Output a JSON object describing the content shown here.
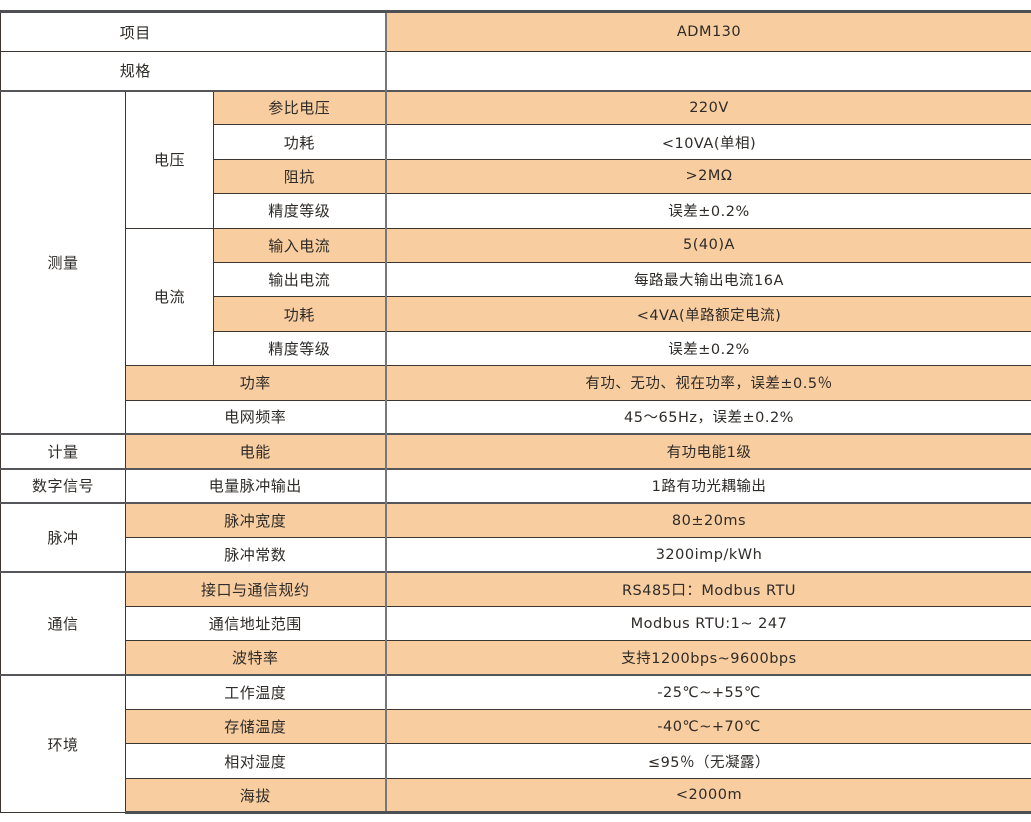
{
  "colors": {
    "accent_row": "#f8cda0",
    "border_dark": "#3b3631",
    "border_section": "#55565a"
  },
  "table": {
    "top_rows": [
      {
        "label": "项目",
        "value": "ADM130"
      },
      {
        "label": "规格",
        "value": ""
      }
    ],
    "sections": [
      {
        "name": "测量",
        "groups": [
          {
            "name": "电压",
            "items": [
              {
                "label": "参比电压",
                "value": "220V"
              },
              {
                "label": "功耗",
                "value": "<10VA(单相)"
              },
              {
                "label": "阻抗",
                "value": ">2MΩ"
              },
              {
                "label": "精度等级",
                "value": "误差±0.2%"
              }
            ]
          },
          {
            "name": "电流",
            "items": [
              {
                "label": "输入电流",
                "value": "5(40)A"
              },
              {
                "label": "输出电流",
                "value": "每路最大输出电流16A"
              },
              {
                "label": "功耗",
                "value": "<4VA(单路额定电流)"
              },
              {
                "label": "精度等级",
                "value": "误差±0.2%"
              }
            ]
          }
        ],
        "items": [
          {
            "label": "功率",
            "value": "有功、无功、视在功率，误差±0.5％"
          },
          {
            "label": "电网频率",
            "value": "45～65Hz，误差±0.2%"
          }
        ]
      },
      {
        "name": "计量",
        "items": [
          {
            "label": "电能",
            "value": "有功电能1级"
          }
        ]
      },
      {
        "name": "数字信号",
        "items": [
          {
            "label": "电量脉冲输出",
            "value": "1路有功光耦输出"
          }
        ]
      },
      {
        "name": "脉冲",
        "items": [
          {
            "label": "脉冲宽度",
            "value": "80±20ms"
          },
          {
            "label": "脉冲常数",
            "value": "3200imp/kWh"
          }
        ]
      },
      {
        "name": "通信",
        "items": [
          {
            "label": "接口与通信规约",
            "value": "RS485口：Modbus RTU"
          },
          {
            "label": "通信地址范围",
            "value": "Modbus RTU:1~ 247"
          },
          {
            "label": "波特率",
            "value": "支持1200bps~9600bps"
          }
        ]
      },
      {
        "name": "环境",
        "items": [
          {
            "label": "工作温度",
            "value": "-25℃~+55℃"
          },
          {
            "label": "存储温度",
            "value": "-40℃~+70℃"
          },
          {
            "label": "相对湿度",
            "value": "≤95％（无凝露）"
          },
          {
            "label": "海拔",
            "value": "<2000m"
          }
        ]
      }
    ]
  }
}
